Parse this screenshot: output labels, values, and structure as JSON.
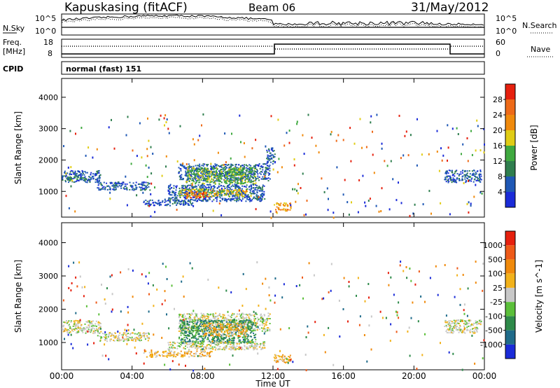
{
  "header": {
    "station": "Kapuskasing (fitACF)",
    "beam": "Beam 06",
    "date": "31/May/2012"
  },
  "sky_panel": {
    "left_label": "N.Sky",
    "right_label": "N.Search",
    "left_ticks": [
      "10^5",
      "10^0"
    ],
    "right_ticks": [
      "10^5",
      "10^0"
    ]
  },
  "freq_panel": {
    "left_label_top": "Freq.",
    "left_label_unit": "[MHz]",
    "left_ticks": [
      "18",
      "8"
    ],
    "right_ticks": [
      "60",
      "0"
    ],
    "right_label": "Nave"
  },
  "cpid": {
    "label": "CPID",
    "mode": "normal (fast) 151"
  },
  "chart_data": [
    {
      "type": "heatmap",
      "quantity": "power",
      "ylabel": "Slant Range [km]",
      "ylim": [
        180,
        4600
      ],
      "yticks": [
        1000,
        2000,
        3000,
        4000
      ],
      "colorbar": {
        "label": "Power [dB]",
        "ticks": [
          "4",
          "8",
          "12",
          "16",
          "20",
          "24",
          "28"
        ],
        "colors": [
          "#1a2bd8",
          "#1f58b5",
          "#2f7e4e",
          "#3fa93f",
          "#e0cc15",
          "#f08a0c",
          "#ee6a18",
          "#e6200e"
        ]
      },
      "scatter_regions": [
        {
          "x0": 0.0,
          "x1": 2.2,
          "r0": 1300,
          "r1": 1680,
          "level": 1
        },
        {
          "x0": 0.2,
          "x1": 1.6,
          "r0": 1380,
          "r1": 1480,
          "level": 2
        },
        {
          "x0": 2.0,
          "x1": 5.0,
          "r0": 1060,
          "r1": 1320,
          "level": 1
        },
        {
          "x0": 6.6,
          "x1": 11.8,
          "r0": 1350,
          "r1": 1900,
          "level": 1
        },
        {
          "x0": 7.0,
          "x1": 11.0,
          "r0": 1250,
          "r1": 1780,
          "level": 3
        },
        {
          "x0": 6.0,
          "x1": 11.5,
          "r0": 700,
          "r1": 1250,
          "level": 1
        },
        {
          "x0": 6.6,
          "x1": 10.5,
          "r0": 850,
          "r1": 1100,
          "level": 4
        },
        {
          "x0": 7.0,
          "x1": 8.3,
          "r0": 800,
          "r1": 1000,
          "level": 6
        },
        {
          "x0": 4.6,
          "x1": 7.4,
          "r0": 560,
          "r1": 740,
          "level": 1
        },
        {
          "x0": 12.0,
          "x1": 13.0,
          "r0": 400,
          "r1": 650,
          "level": 5
        },
        {
          "x0": 11.6,
          "x1": 12.1,
          "r0": 1900,
          "r1": 2400,
          "level": 1
        },
        {
          "x0": 21.7,
          "x1": 23.8,
          "r0": 1300,
          "r1": 1700,
          "level": 1
        }
      ]
    },
    {
      "type": "heatmap",
      "quantity": "velocity",
      "xlabel": "Time UT",
      "ylabel": "Slant Range [km]",
      "xticks": [
        "00:00",
        "04:00",
        "08:00",
        "12:00",
        "16:00",
        "20:00",
        "00:00"
      ],
      "ylim": [
        180,
        4600
      ],
      "yticks": [
        1000,
        2000,
        3000,
        4000
      ],
      "colorbar": {
        "label": "Velocity [m s^-1]",
        "ticks": [
          "1000",
          "500",
          "100",
          "25",
          "-25",
          "-100",
          "-500",
          "-1000"
        ],
        "colors": [
          "#1a2bd8",
          "#1f6b8a",
          "#2e8a4a",
          "#5bbf3a",
          "#c8c8c8",
          "#f2b21b",
          "#f08a0c",
          "#ee5a18",
          "#e6200e"
        ]
      },
      "scatter_regions": [
        {
          "x0": 0.0,
          "x1": 2.2,
          "r0": 1300,
          "r1": 1680,
          "level": 4
        },
        {
          "x0": 2.0,
          "x1": 5.0,
          "r0": 1060,
          "r1": 1320,
          "level": 4
        },
        {
          "x0": 6.6,
          "x1": 11.8,
          "r0": 1350,
          "r1": 1900,
          "level": 4
        },
        {
          "x0": 6.6,
          "x1": 11.0,
          "r0": 1000,
          "r1": 1700,
          "level": 2
        },
        {
          "x0": 8.0,
          "x1": 10.5,
          "r0": 1200,
          "r1": 1600,
          "level": 5
        },
        {
          "x0": 6.0,
          "x1": 11.5,
          "r0": 800,
          "r1": 1050,
          "level": 4
        },
        {
          "x0": 4.6,
          "x1": 8.5,
          "r0": 580,
          "r1": 760,
          "level": 5
        },
        {
          "x0": 12.0,
          "x1": 13.0,
          "r0": 400,
          "r1": 650,
          "level": 5
        },
        {
          "x0": 21.7,
          "x1": 23.8,
          "r0": 1300,
          "r1": 1700,
          "level": 4
        }
      ]
    }
  ]
}
